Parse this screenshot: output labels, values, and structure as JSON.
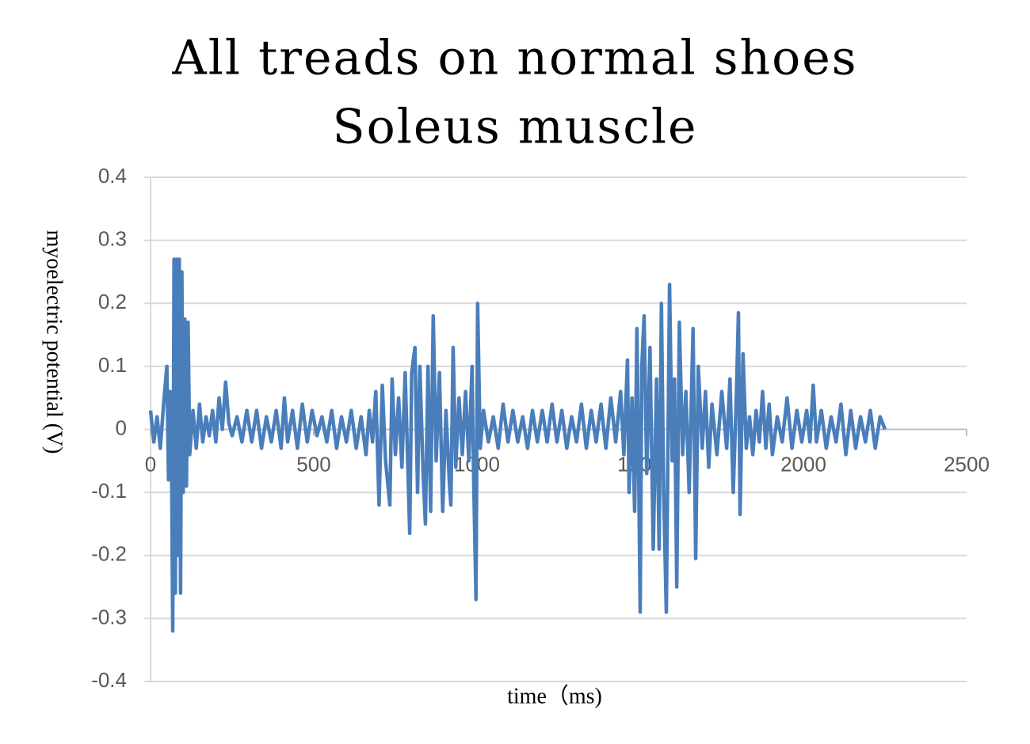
{
  "chart_data": {
    "type": "line",
    "title": "All treads on normal shoes",
    "subtitle": "Soleus muscle",
    "x_label": "time（ms)",
    "y_label": "myoelectric potential (V)",
    "xlim": [
      0,
      2500
    ],
    "xticks": [
      0,
      500,
      1000,
      1500,
      2000,
      2500
    ],
    "ylim": [
      -0.4,
      0.4
    ],
    "yticks": [
      -0.4,
      -0.3,
      -0.2,
      -0.1,
      0,
      0.1,
      0.2,
      0.3,
      0.4
    ],
    "grid": true,
    "x": [
      0,
      10,
      20,
      30,
      40,
      50,
      55,
      60,
      65,
      68,
      72,
      76,
      80,
      84,
      88,
      92,
      96,
      100,
      105,
      110,
      115,
      120,
      130,
      140,
      150,
      160,
      170,
      180,
      190,
      200,
      210,
      220,
      230,
      240,
      250,
      265,
      280,
      295,
      310,
      325,
      340,
      355,
      370,
      385,
      400,
      410,
      420,
      435,
      450,
      465,
      480,
      495,
      510,
      525,
      540,
      555,
      570,
      585,
      600,
      615,
      630,
      645,
      660,
      670,
      680,
      690,
      700,
      710,
      720,
      733,
      740,
      750,
      760,
      770,
      780,
      794,
      800,
      810,
      818,
      825,
      835,
      842,
      850,
      858,
      866,
      875,
      885,
      895,
      905,
      915,
      920,
      927,
      935,
      945,
      955,
      965,
      975,
      985,
      990,
      997,
      1002,
      1010,
      1020,
      1035,
      1050,
      1065,
      1080,
      1095,
      1110,
      1125,
      1140,
      1155,
      1170,
      1185,
      1200,
      1215,
      1230,
      1245,
      1260,
      1275,
      1290,
      1305,
      1320,
      1335,
      1350,
      1365,
      1380,
      1395,
      1410,
      1425,
      1440,
      1450,
      1461,
      1466,
      1475,
      1483,
      1490,
      1495,
      1500,
      1505,
      1512,
      1520,
      1530,
      1540,
      1550,
      1558,
      1565,
      1572,
      1580,
      1590,
      1598,
      1605,
      1612,
      1620,
      1630,
      1640,
      1650,
      1662,
      1670,
      1678,
      1690,
      1700,
      1710,
      1720,
      1735,
      1750,
      1765,
      1775,
      1785,
      1795,
      1801,
      1806,
      1815,
      1825,
      1835,
      1845,
      1855,
      1865,
      1875,
      1885,
      1895,
      1905,
      1920,
      1935,
      1950,
      1965,
      1980,
      1995,
      2010,
      2020,
      2030,
      2040,
      2055,
      2070,
      2085,
      2100,
      2115,
      2130,
      2145,
      2160,
      2175,
      2190,
      2205,
      2220,
      2235,
      2250
    ],
    "series": [
      {
        "name": "Soleus muscle",
        "color": "#4a7ebb",
        "values": [
          0.03,
          -0.02,
          0.02,
          -0.03,
          0.04,
          0.1,
          -0.08,
          0.06,
          -0.09,
          -0.32,
          0.27,
          -0.26,
          0.27,
          -0.2,
          0.27,
          -0.26,
          0.25,
          -0.1,
          0.175,
          -0.09,
          0.17,
          -0.04,
          0.03,
          -0.03,
          0.04,
          -0.02,
          0.02,
          -0.01,
          0.03,
          -0.02,
          0.05,
          0,
          0.075,
          0.01,
          -0.01,
          0.02,
          -0.02,
          0.03,
          -0.02,
          0.03,
          -0.03,
          0.02,
          -0.02,
          0.03,
          -0.03,
          0.05,
          -0.02,
          0.03,
          -0.03,
          0.04,
          -0.02,
          0.03,
          -0.01,
          0.02,
          -0.02,
          0.03,
          -0.03,
          0.02,
          -0.02,
          0.03,
          -0.03,
          0.02,
          -0.04,
          0.03,
          -0.02,
          0.06,
          -0.12,
          0.07,
          -0.05,
          -0.12,
          0.08,
          -0.04,
          0.05,
          -0.06,
          0.09,
          -0.165,
          0.09,
          0.13,
          -0.1,
          0.1,
          -0.07,
          -0.15,
          0.1,
          -0.13,
          0.18,
          -0.05,
          0.09,
          -0.13,
          0.03,
          -0.08,
          -0.12,
          0.13,
          -0.06,
          0.05,
          -0.04,
          0.06,
          -0.05,
          0.1,
          -0.08,
          -0.27,
          0.2,
          -0.03,
          0.03,
          -0.02,
          0.02,
          -0.03,
          0.04,
          -0.02,
          0.03,
          -0.02,
          0.02,
          -0.03,
          0.03,
          -0.02,
          0.03,
          -0.02,
          0.04,
          -0.02,
          0.03,
          -0.03,
          0.02,
          -0.02,
          0.04,
          -0.03,
          0.03,
          -0.02,
          0.04,
          -0.03,
          0.05,
          -0.02,
          0.06,
          -0.04,
          0.11,
          -0.1,
          0.05,
          -0.13,
          0.16,
          -0.05,
          -0.29,
          0.1,
          0.18,
          -0.07,
          0.13,
          -0.19,
          0.08,
          -0.19,
          0.2,
          -0.1,
          -0.29,
          0.23,
          -0.05,
          0.08,
          -0.25,
          0.17,
          -0.04,
          0.06,
          -0.1,
          0.16,
          -0.205,
          0.1,
          -0.03,
          0.06,
          -0.06,
          0.04,
          -0.04,
          0.06,
          -0.03,
          0.08,
          -0.1,
          0.06,
          0.185,
          -0.135,
          0.12,
          -0.03,
          0.02,
          -0.04,
          0.03,
          -0.02,
          0.06,
          -0.03,
          0.04,
          -0.04,
          0.02,
          -0.02,
          0.05,
          -0.03,
          0.03,
          -0.02,
          0.03,
          -0.02,
          0.07,
          -0.02,
          0.03,
          -0.03,
          0.02,
          -0.02,
          0.04,
          -0.04,
          0.03,
          -0.03,
          0.02,
          -0.02,
          0.03,
          -0.03,
          0.02,
          0
        ]
      }
    ]
  }
}
